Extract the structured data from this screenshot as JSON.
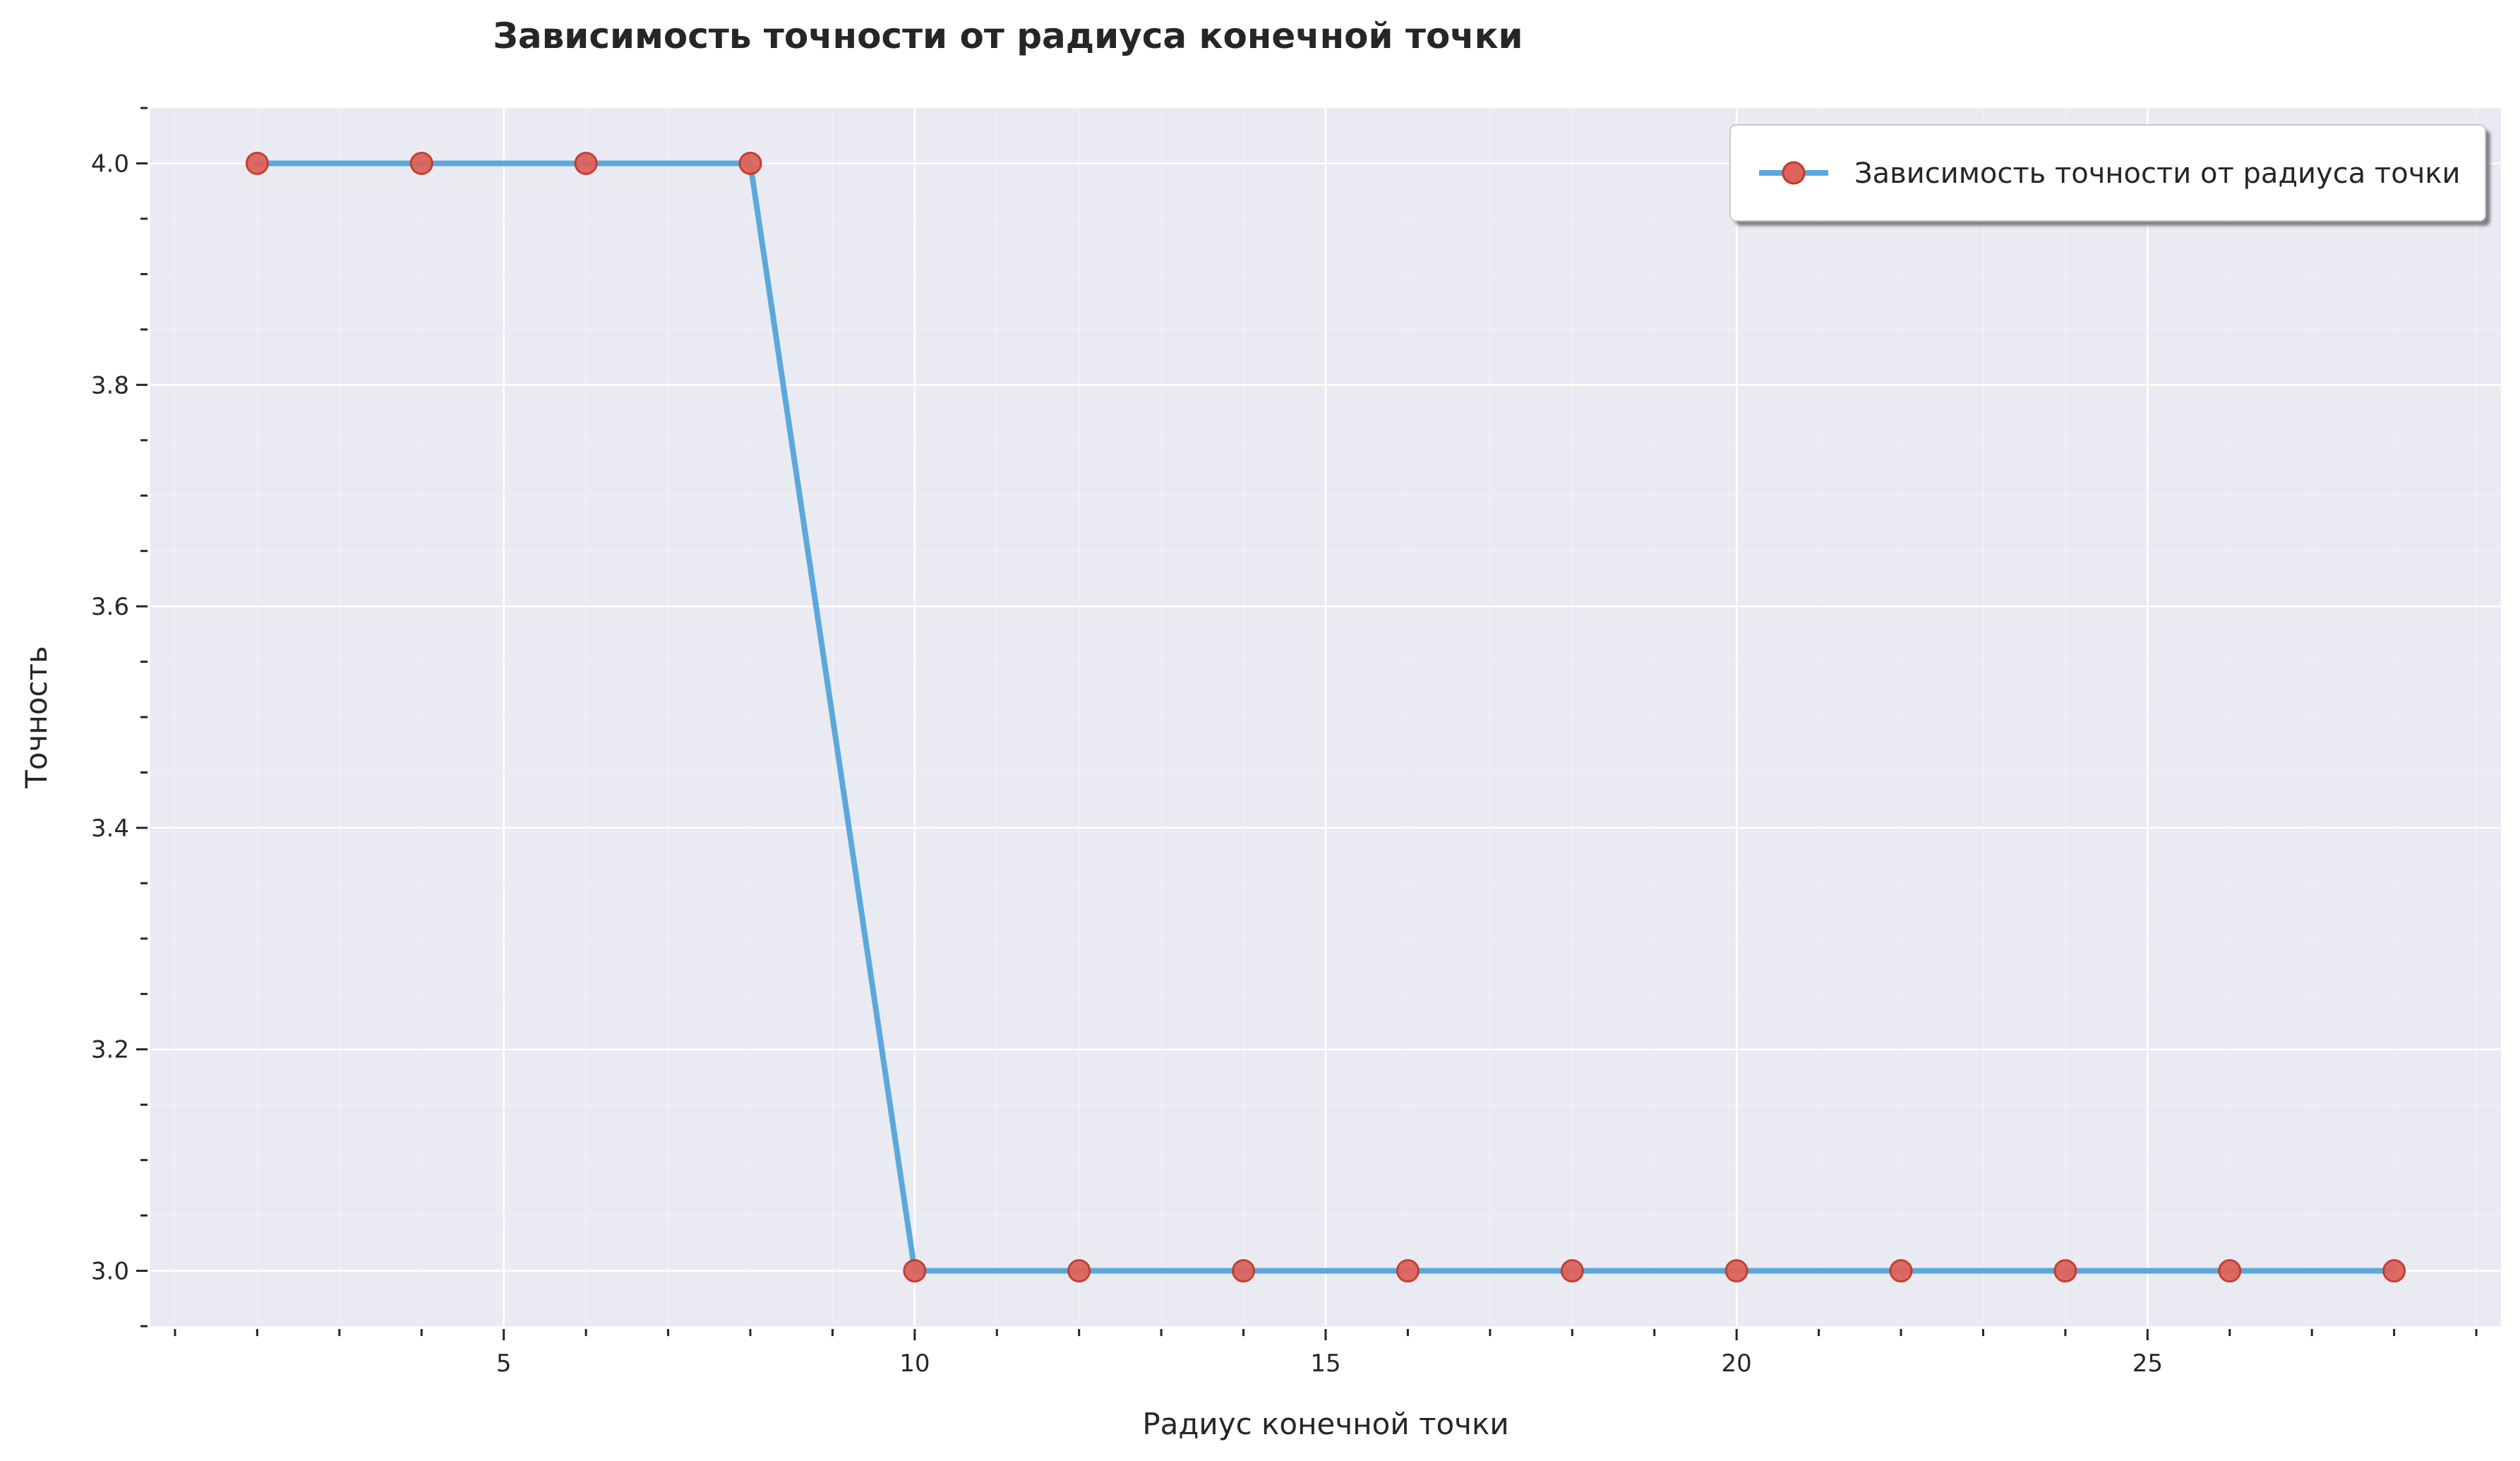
{
  "chart_data": {
    "type": "line",
    "title": "Зависимость точности от радиуса конечной точки",
    "xlabel": "Радиус конечной точки",
    "ylabel": "Точность",
    "xlim": [
      0.7,
      29.3
    ],
    "ylim": [
      2.95,
      4.05
    ],
    "xticks": [
      5,
      10,
      15,
      20,
      25
    ],
    "xtick_labels": [
      "5",
      "10",
      "15",
      "20",
      "25"
    ],
    "yticks": [
      3.0,
      3.2,
      3.4,
      3.6,
      3.8,
      4.0
    ],
    "ytick_labels": [
      "3.0",
      "3.2",
      "3.4",
      "3.6",
      "3.8",
      "4.0"
    ],
    "x_minor_step": 1,
    "y_minor_step": 0.05,
    "grid": true,
    "legend_position": "top-right",
    "series": [
      {
        "name": "Зависимость точности от радиуса точки",
        "x": [
          2,
          4,
          6,
          8,
          10,
          12,
          14,
          16,
          18,
          20,
          22,
          24,
          26,
          28
        ],
        "y": [
          4,
          4,
          4,
          4,
          3,
          3,
          3,
          3,
          3,
          3,
          3,
          3,
          3,
          3
        ],
        "line_color": "#5ba8dc",
        "marker_color": "#dd635c",
        "marker_edge_color": "#c0392b"
      }
    ],
    "background_color": "#eaeaf2",
    "grid_color": "#ffffff"
  }
}
